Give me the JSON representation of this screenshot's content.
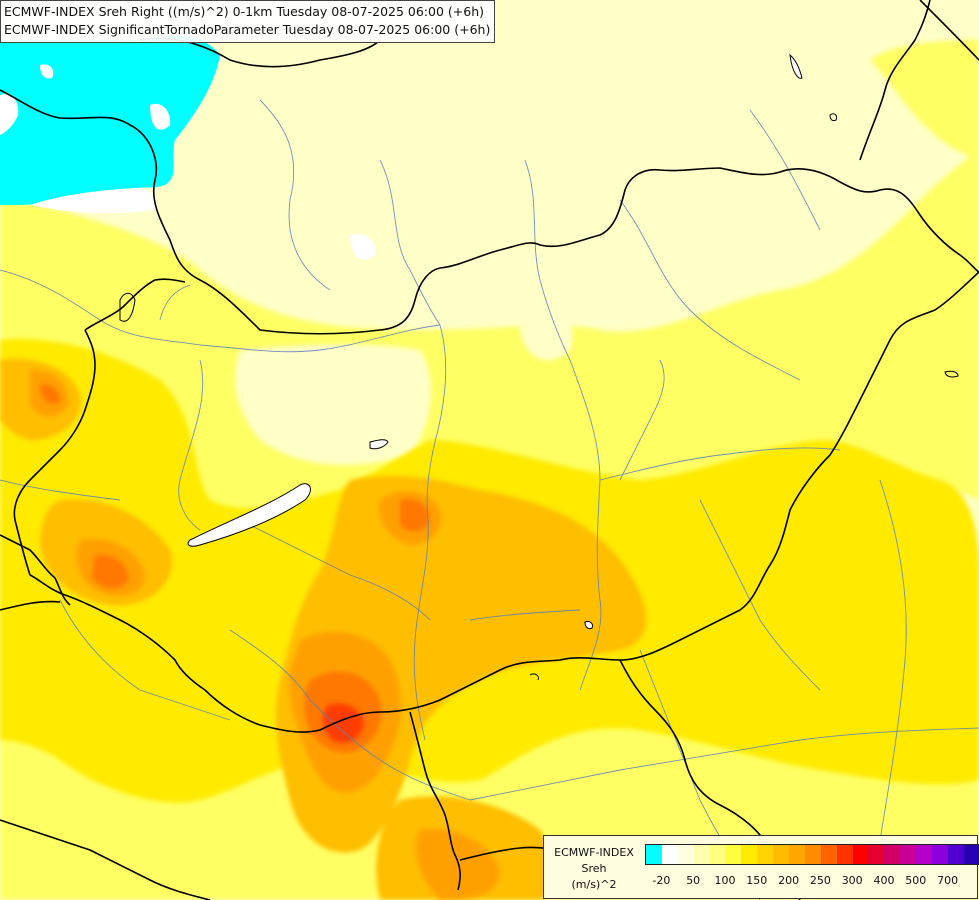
{
  "title": {
    "line1": "ECMWF-INDEX Sreh Right ((m/s)^2) 0-1km Tuesday 08-07-2025 06:00 (+6h)",
    "line2": "ECMWF-INDEX SignificantTornadoParameter Tuesday 08-07-2025 06:00 (+6h)"
  },
  "legend": {
    "line1": "ECMWF-INDEX",
    "line2": "Sreh",
    "line3": "(m/s)^2",
    "colors": [
      "#00ffff",
      "#ffffff",
      "#ffffe0",
      "#ffffb0",
      "#ffff80",
      "#ffff40",
      "#ffea00",
      "#ffd200",
      "#ffbb00",
      "#ffa600",
      "#ff8c00",
      "#ff6400",
      "#ff3200",
      "#ff0000",
      "#e60030",
      "#d20064",
      "#c80096",
      "#b400c8",
      "#8c00dc",
      "#5000d2",
      "#2800b4",
      "#00006e"
    ],
    "ticks": [
      {
        "label": "-20",
        "index": 0
      },
      {
        "label": "50",
        "index": 2
      },
      {
        "label": "100",
        "index": 4
      },
      {
        "label": "150",
        "index": 6
      },
      {
        "label": "200",
        "index": 8
      },
      {
        "label": "250",
        "index": 10
      },
      {
        "label": "300",
        "index": 12
      },
      {
        "label": "400",
        "index": 14
      },
      {
        "label": "500",
        "index": 16
      },
      {
        "label": "700",
        "index": 18
      }
    ]
  }
}
